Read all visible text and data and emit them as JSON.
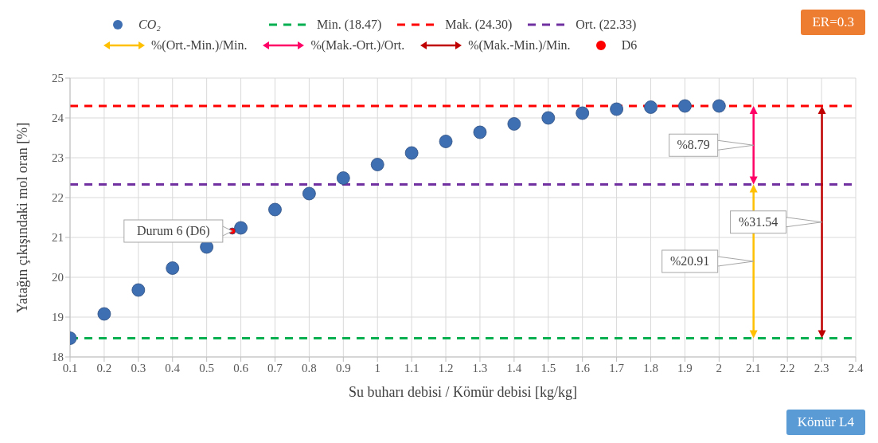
{
  "chart_data": {
    "type": "scatter",
    "xlabel": "Su buharı debisi / Kömür debisi [kg/kg]",
    "ylabel": "Yatağın çıkışındaki mol oran [%]",
    "x": [
      0.1,
      0.2,
      0.3,
      0.4,
      0.5,
      0.6,
      0.7,
      0.8,
      0.9,
      1.0,
      1.1,
      1.2,
      1.3,
      1.4,
      1.5,
      1.6,
      1.7,
      1.8,
      1.9,
      2.0
    ],
    "series": [
      {
        "name": "CO₂",
        "color": "#3f6fb3",
        "values": [
          18.47,
          19.08,
          19.68,
          20.23,
          20.76,
          21.24,
          21.7,
          22.1,
          22.49,
          22.83,
          23.12,
          23.41,
          23.64,
          23.85,
          24.0,
          24.12,
          24.22,
          24.27,
          24.3,
          24.3
        ]
      },
      {
        "name": "D6",
        "color": "#ff0000",
        "x": [
          0.575
        ],
        "values": [
          21.16
        ]
      }
    ],
    "ref_lines": [
      {
        "axis": "y",
        "value": 18.47,
        "label": "Min. (18.47)",
        "color": "#00b050",
        "line_style": "dashed"
      },
      {
        "axis": "y",
        "value": 24.3,
        "label": "Mak. (24.30)",
        "color": "#ff0000",
        "line_style": "dashed"
      },
      {
        "axis": "y",
        "value": 22.33,
        "label": "Ort. (22.33)",
        "color": "#7030a0",
        "line_style": "dashed"
      }
    ],
    "annotations": [
      {
        "text": "Durum 6 (D6)",
        "x": 0.575,
        "y": 21.16
      },
      "%20.91",
      "%8.79",
      "%31.54",
      "%(Ort.-Min.)/Min.",
      "%(Mak.-Ort.)/Ort.",
      "%(Mak.-Min.)/Min.",
      "ER=0.3",
      "Kömür L4"
    ],
    "xlim": [
      0.1,
      2.4
    ],
    "xticks": [
      0.1,
      0.2,
      0.3,
      0.4,
      0.5,
      0.6,
      0.7,
      0.8,
      0.9,
      1,
      1.1,
      1.2,
      1.3,
      1.4,
      1.5,
      1.6,
      1.7,
      1.8,
      1.9,
      2,
      2.1,
      2.2,
      2.3,
      2.4
    ],
    "ylim": [
      18,
      25
    ],
    "yticks": [
      18,
      19,
      20,
      21,
      22,
      23,
      24,
      25
    ],
    "grid": true,
    "legend": "top",
    "marker": "circle"
  }
}
